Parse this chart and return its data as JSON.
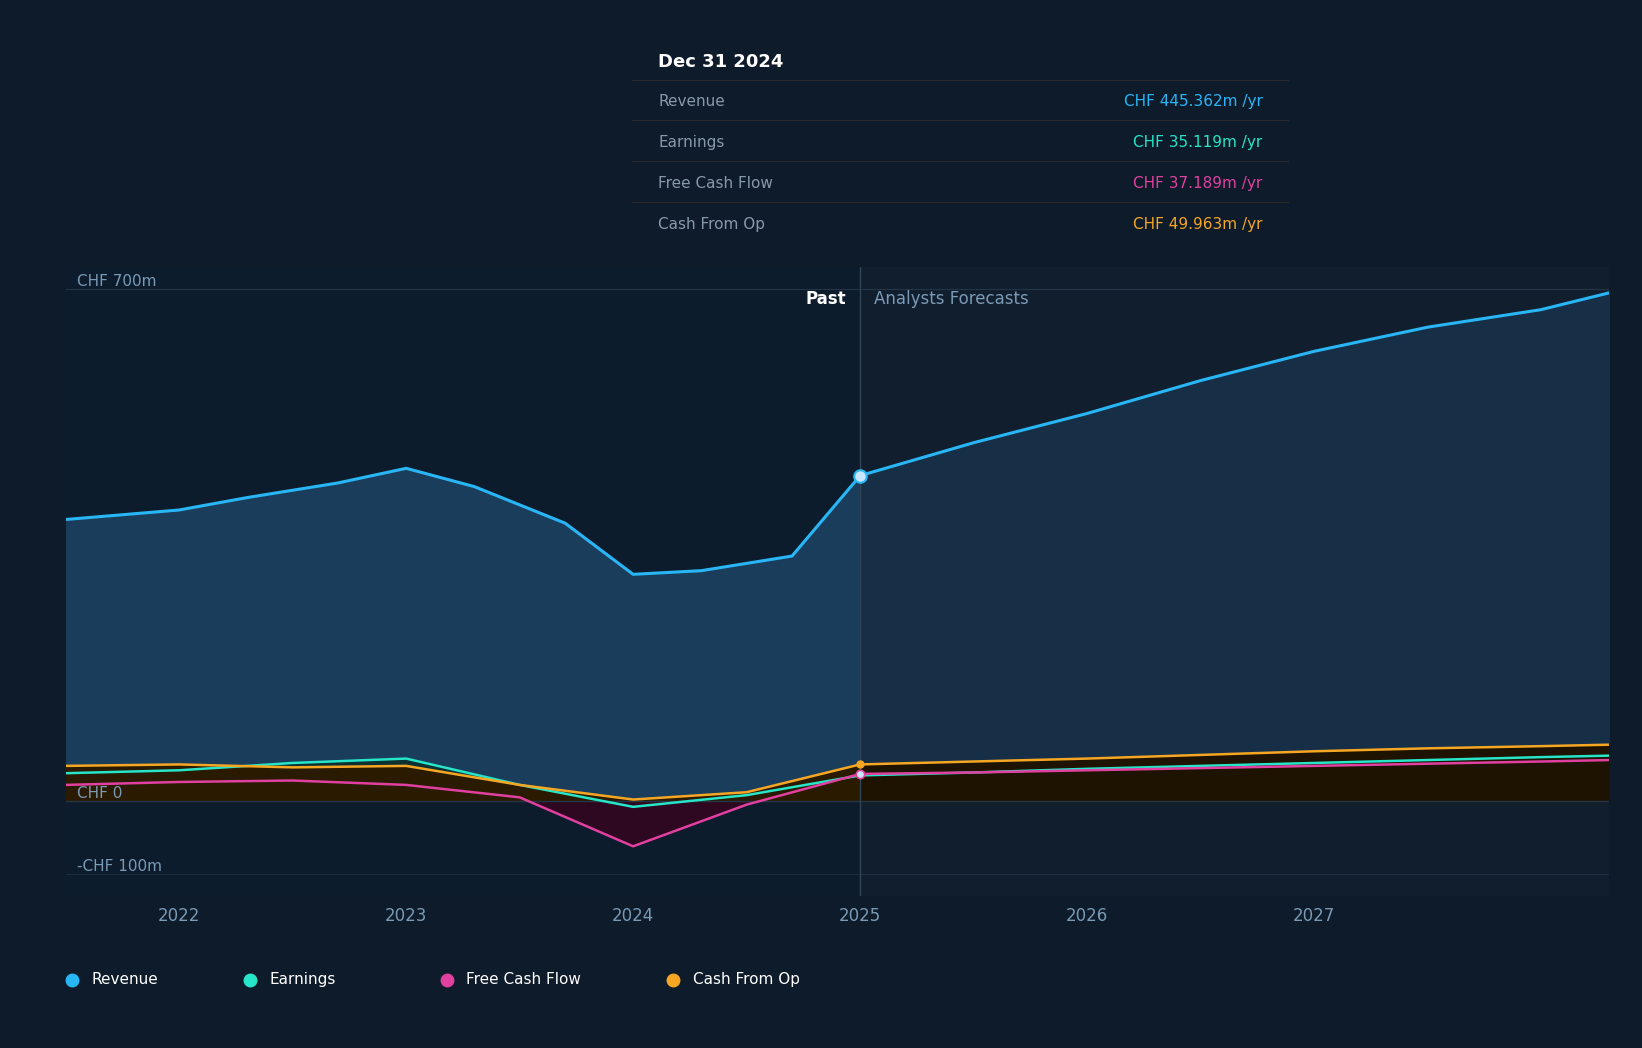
{
  "bg_color": "#0d1b2a",
  "plot_bg_color": "#0e1e2e",
  "ylabel_700": "CHF 700m",
  "ylabel_0": "CHF 0",
  "ylabel_minus100": "-CHF 100m",
  "divider_x": 2025.0,
  "past_label": "Past",
  "forecast_label": "Analysts Forecasts",
  "x_ticks": [
    2022,
    2023,
    2024,
    2025,
    2026,
    2027
  ],
  "ylim": [
    -130,
    730
  ],
  "xlim": [
    2021.5,
    2028.3
  ],
  "tooltip": {
    "title": "Dec 31 2024",
    "rows": [
      {
        "label": "Revenue",
        "value": "CHF 445.362m /yr",
        "color": "#29b6f6"
      },
      {
        "label": "Earnings",
        "value": "CHF 35.119m /yr",
        "color": "#26e5c8"
      },
      {
        "label": "Free Cash Flow",
        "value": "CHF 37.189m /yr",
        "color": "#e040a0"
      },
      {
        "label": "Cash From Op",
        "value": "CHF 49.963m /yr",
        "color": "#f5a623"
      }
    ]
  },
  "revenue": {
    "color": "#29b6f6",
    "fill_past": "#1b3d5c",
    "fill_fore": "#162f47",
    "past_x": [
      2021.5,
      2022.0,
      2022.3,
      2022.7,
      2023.0,
      2023.3,
      2023.7,
      2024.0,
      2024.3,
      2024.7,
      2025.0
    ],
    "past_y": [
      385,
      398,
      415,
      435,
      455,
      430,
      380,
      310,
      315,
      335,
      445
    ],
    "forecast_x": [
      2025.0,
      2025.5,
      2026.0,
      2026.5,
      2027.0,
      2027.5,
      2028.0,
      2028.3
    ],
    "forecast_y": [
      445,
      490,
      530,
      575,
      615,
      648,
      672,
      695
    ]
  },
  "earnings": {
    "color": "#26e5c8",
    "fill_past": "#0d3030",
    "fill_fore": "#0a2520",
    "past_x": [
      2021.5,
      2022.0,
      2022.5,
      2023.0,
      2023.5,
      2024.0,
      2024.5,
      2025.0
    ],
    "past_y": [
      38,
      42,
      52,
      58,
      22,
      -8,
      8,
      35
    ],
    "forecast_x": [
      2025.0,
      2025.5,
      2026.0,
      2026.5,
      2027.0,
      2027.5,
      2028.0,
      2028.3
    ],
    "forecast_y": [
      35,
      39,
      44,
      48,
      52,
      56,
      60,
      62
    ]
  },
  "fcf": {
    "color": "#e040a0",
    "fill_past": "#2d0820",
    "fill_fore": "#200618",
    "past_x": [
      2021.5,
      2022.0,
      2022.5,
      2023.0,
      2023.5,
      2024.0,
      2024.5,
      2025.0
    ],
    "past_y": [
      22,
      26,
      28,
      22,
      5,
      -62,
      -5,
      37
    ],
    "forecast_x": [
      2025.0,
      2025.5,
      2026.0,
      2026.5,
      2027.0,
      2027.5,
      2028.0,
      2028.3
    ],
    "forecast_y": [
      37,
      39,
      42,
      45,
      48,
      51,
      54,
      56
    ]
  },
  "cfo": {
    "color": "#f5a623",
    "fill_past": "#2a1a00",
    "fill_fore": "#1e1200",
    "past_x": [
      2021.5,
      2022.0,
      2022.5,
      2023.0,
      2023.5,
      2024.0,
      2024.5,
      2025.0
    ],
    "past_y": [
      48,
      50,
      46,
      48,
      22,
      2,
      12,
      50
    ],
    "forecast_x": [
      2025.0,
      2025.5,
      2026.0,
      2026.5,
      2027.0,
      2027.5,
      2028.0,
      2028.3
    ],
    "forecast_y": [
      50,
      54,
      58,
      63,
      68,
      72,
      75,
      77
    ]
  },
  "legend": [
    {
      "label": "Revenue",
      "color": "#29b6f6"
    },
    {
      "label": "Earnings",
      "color": "#26e5c8"
    },
    {
      "label": "Free Cash Flow",
      "color": "#e040a0"
    },
    {
      "label": "Cash From Op",
      "color": "#f5a623"
    }
  ]
}
